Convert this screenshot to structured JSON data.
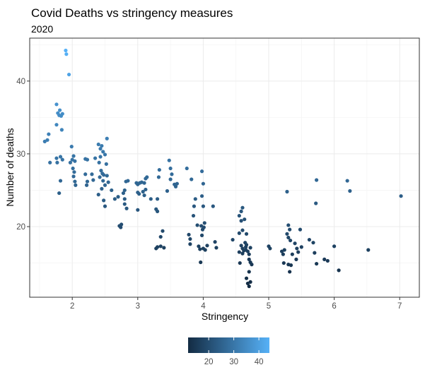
{
  "chart_data": {
    "type": "scatter",
    "title": "Covid Deaths vs  stringency measures",
    "subtitle": "2020",
    "xlabel": "Stringency",
    "ylabel": "Number of deaths",
    "xlim": [
      1.35,
      7.3
    ],
    "ylim": [
      10.3,
      45.9
    ],
    "x_ticks": [
      2,
      3,
      4,
      5,
      6,
      7
    ],
    "y_ticks": [
      20,
      30,
      40
    ],
    "grid": true,
    "color_by": "y",
    "colorbar": {
      "ticks": [
        20,
        30,
        40
      ],
      "range": [
        11.8,
        44.2
      ],
      "low_color": "#132B43",
      "high_color": "#56B1F7",
      "placement": "bottom"
    },
    "points": [
      {
        "x": 1.58,
        "y": 31.7
      },
      {
        "x": 1.62,
        "y": 31.9
      },
      {
        "x": 1.64,
        "y": 32.7
      },
      {
        "x": 1.66,
        "y": 28.8
      },
      {
        "x": 1.76,
        "y": 36.8
      },
      {
        "x": 1.78,
        "y": 35.6
      },
      {
        "x": 1.8,
        "y": 35.3
      },
      {
        "x": 1.81,
        "y": 36.0
      },
      {
        "x": 1.83,
        "y": 35.2
      },
      {
        "x": 1.85,
        "y": 35.5
      },
      {
        "x": 1.76,
        "y": 34.0
      },
      {
        "x": 1.84,
        "y": 33.3
      },
      {
        "x": 1.76,
        "y": 29.4
      },
      {
        "x": 1.77,
        "y": 28.8
      },
      {
        "x": 1.82,
        "y": 29.6
      },
      {
        "x": 1.85,
        "y": 29.2
      },
      {
        "x": 1.82,
        "y": 26.3
      },
      {
        "x": 1.8,
        "y": 24.6
      },
      {
        "x": 1.9,
        "y": 44.2
      },
      {
        "x": 1.91,
        "y": 43.7
      },
      {
        "x": 1.95,
        "y": 40.9
      },
      {
        "x": 1.99,
        "y": 31.0
      },
      {
        "x": 2.0,
        "y": 29.2
      },
      {
        "x": 2.02,
        "y": 29.7
      },
      {
        "x": 2.04,
        "y": 29.0
      },
      {
        "x": 2.01,
        "y": 28.0
      },
      {
        "x": 2.03,
        "y": 27.5
      },
      {
        "x": 2.02,
        "y": 26.9
      },
      {
        "x": 2.04,
        "y": 26.2
      },
      {
        "x": 2.05,
        "y": 25.7
      },
      {
        "x": 1.97,
        "y": 28.8
      },
      {
        "x": 2.2,
        "y": 29.3
      },
      {
        "x": 2.23,
        "y": 29.2
      },
      {
        "x": 2.2,
        "y": 27.2
      },
      {
        "x": 2.23,
        "y": 26.2
      },
      {
        "x": 2.22,
        "y": 25.7
      },
      {
        "x": 2.3,
        "y": 27.2
      },
      {
        "x": 2.32,
        "y": 26.4
      },
      {
        "x": 2.35,
        "y": 29.4
      },
      {
        "x": 2.4,
        "y": 31.3
      },
      {
        "x": 2.43,
        "y": 30.7
      },
      {
        "x": 2.45,
        "y": 31.1
      },
      {
        "x": 2.47,
        "y": 30.3
      },
      {
        "x": 2.43,
        "y": 29.6
      },
      {
        "x": 2.5,
        "y": 29.9
      },
      {
        "x": 2.53,
        "y": 32.1
      },
      {
        "x": 2.41,
        "y": 28.8
      },
      {
        "x": 2.44,
        "y": 27.7
      },
      {
        "x": 2.46,
        "y": 27.3
      },
      {
        "x": 2.48,
        "y": 27.1
      },
      {
        "x": 2.42,
        "y": 26.8
      },
      {
        "x": 2.47,
        "y": 26.3
      },
      {
        "x": 2.52,
        "y": 28.6
      },
      {
        "x": 2.53,
        "y": 27.0
      },
      {
        "x": 2.55,
        "y": 26.1
      },
      {
        "x": 2.5,
        "y": 25.7
      },
      {
        "x": 2.45,
        "y": 25.2
      },
      {
        "x": 2.4,
        "y": 24.4
      },
      {
        "x": 2.48,
        "y": 23.6
      },
      {
        "x": 2.5,
        "y": 22.8
      },
      {
        "x": 2.6,
        "y": 25.0
      },
      {
        "x": 2.65,
        "y": 23.8
      },
      {
        "x": 2.7,
        "y": 24.1
      },
      {
        "x": 2.72,
        "y": 20.1
      },
      {
        "x": 2.74,
        "y": 19.9
      },
      {
        "x": 2.75,
        "y": 20.3
      },
      {
        "x": 2.78,
        "y": 24.6
      },
      {
        "x": 2.8,
        "y": 23.8
      },
      {
        "x": 2.82,
        "y": 26.2
      },
      {
        "x": 2.85,
        "y": 26.3
      },
      {
        "x": 2.8,
        "y": 23.1
      },
      {
        "x": 2.83,
        "y": 22.5
      },
      {
        "x": 2.8,
        "y": 25.0
      },
      {
        "x": 2.98,
        "y": 26.0
      },
      {
        "x": 3.0,
        "y": 25.8
      },
      {
        "x": 3.03,
        "y": 26.0
      },
      {
        "x": 3.06,
        "y": 26.1
      },
      {
        "x": 3.1,
        "y": 26.0
      },
      {
        "x": 3.12,
        "y": 26.6
      },
      {
        "x": 3.14,
        "y": 26.8
      },
      {
        "x": 3.0,
        "y": 24.7
      },
      {
        "x": 3.02,
        "y": 24.5
      },
      {
        "x": 3.08,
        "y": 24.8
      },
      {
        "x": 3.1,
        "y": 24.3
      },
      {
        "x": 3.12,
        "y": 25.1
      },
      {
        "x": 3.0,
        "y": 22.3
      },
      {
        "x": 3.2,
        "y": 23.8
      },
      {
        "x": 3.28,
        "y": 22.4
      },
      {
        "x": 3.3,
        "y": 22.1
      },
      {
        "x": 3.3,
        "y": 23.8
      },
      {
        "x": 3.32,
        "y": 26.8
      },
      {
        "x": 3.33,
        "y": 27.8
      },
      {
        "x": 3.35,
        "y": 18.6
      },
      {
        "x": 3.38,
        "y": 19.4
      },
      {
        "x": 3.28,
        "y": 17.0
      },
      {
        "x": 3.3,
        "y": 17.2
      },
      {
        "x": 3.35,
        "y": 17.3
      },
      {
        "x": 3.4,
        "y": 17.1
      },
      {
        "x": 3.45,
        "y": 24.9
      },
      {
        "x": 3.48,
        "y": 29.1
      },
      {
        "x": 3.5,
        "y": 28.0
      },
      {
        "x": 3.52,
        "y": 27.2
      },
      {
        "x": 3.5,
        "y": 26.5
      },
      {
        "x": 3.56,
        "y": 25.8
      },
      {
        "x": 3.58,
        "y": 25.5
      },
      {
        "x": 3.6,
        "y": 25.9
      },
      {
        "x": 3.75,
        "y": 28.0
      },
      {
        "x": 3.78,
        "y": 18.9
      },
      {
        "x": 3.8,
        "y": 18.3
      },
      {
        "x": 3.82,
        "y": 26.5
      },
      {
        "x": 3.86,
        "y": 22.8
      },
      {
        "x": 3.88,
        "y": 23.8
      },
      {
        "x": 3.85,
        "y": 21.5
      },
      {
        "x": 3.8,
        "y": 17.6
      },
      {
        "x": 3.91,
        "y": 20.2
      },
      {
        "x": 3.93,
        "y": 17.3
      },
      {
        "x": 3.95,
        "y": 16.9
      },
      {
        "x": 3.96,
        "y": 15.1
      },
      {
        "x": 3.98,
        "y": 27.6
      },
      {
        "x": 4.0,
        "y": 25.9
      },
      {
        "x": 3.98,
        "y": 24.2
      },
      {
        "x": 4.0,
        "y": 22.8
      },
      {
        "x": 3.97,
        "y": 20.1
      },
      {
        "x": 3.99,
        "y": 19.6
      },
      {
        "x": 4.01,
        "y": 19.9
      },
      {
        "x": 4.02,
        "y": 20.5
      },
      {
        "x": 3.98,
        "y": 18.8
      },
      {
        "x": 4.0,
        "y": 17.0
      },
      {
        "x": 4.03,
        "y": 16.8
      },
      {
        "x": 4.06,
        "y": 17.4
      },
      {
        "x": 4.15,
        "y": 22.8
      },
      {
        "x": 4.18,
        "y": 17.9
      },
      {
        "x": 4.2,
        "y": 17.1
      },
      {
        "x": 4.45,
        "y": 18.2
      },
      {
        "x": 4.55,
        "y": 21.5
      },
      {
        "x": 4.58,
        "y": 22.1
      },
      {
        "x": 4.6,
        "y": 22.6
      },
      {
        "x": 4.63,
        "y": 21.0
      },
      {
        "x": 4.58,
        "y": 20.8
      },
      {
        "x": 4.6,
        "y": 19.5
      },
      {
        "x": 4.55,
        "y": 19.1
      },
      {
        "x": 4.58,
        "y": 17.4
      },
      {
        "x": 4.6,
        "y": 17.0
      },
      {
        "x": 4.62,
        "y": 16.7
      },
      {
        "x": 4.65,
        "y": 17.2
      },
      {
        "x": 4.55,
        "y": 16.5
      },
      {
        "x": 4.6,
        "y": 16.3
      },
      {
        "x": 4.65,
        "y": 16.8
      },
      {
        "x": 4.68,
        "y": 16.6
      },
      {
        "x": 4.7,
        "y": 16.2
      },
      {
        "x": 4.72,
        "y": 17.1
      },
      {
        "x": 4.66,
        "y": 17.5
      },
      {
        "x": 4.7,
        "y": 15.5
      },
      {
        "x": 4.72,
        "y": 15.1
      },
      {
        "x": 4.74,
        "y": 14.8
      },
      {
        "x": 4.7,
        "y": 13.8
      },
      {
        "x": 4.66,
        "y": 12.9
      },
      {
        "x": 4.68,
        "y": 12.2
      },
      {
        "x": 4.7,
        "y": 11.8
      },
      {
        "x": 4.72,
        "y": 12.4
      },
      {
        "x": 4.56,
        "y": 15.0
      },
      {
        "x": 4.66,
        "y": 19.0
      },
      {
        "x": 4.64,
        "y": 17.8
      },
      {
        "x": 5.0,
        "y": 17.3
      },
      {
        "x": 5.02,
        "y": 17.0
      },
      {
        "x": 5.2,
        "y": 16.6
      },
      {
        "x": 5.22,
        "y": 16.2
      },
      {
        "x": 5.24,
        "y": 16.8
      },
      {
        "x": 5.23,
        "y": 15.0
      },
      {
        "x": 5.28,
        "y": 24.8
      },
      {
        "x": 5.3,
        "y": 20.2
      },
      {
        "x": 5.32,
        "y": 19.6
      },
      {
        "x": 5.28,
        "y": 19.0
      },
      {
        "x": 5.3,
        "y": 18.5
      },
      {
        "x": 5.33,
        "y": 18.1
      },
      {
        "x": 5.3,
        "y": 14.8
      },
      {
        "x": 5.34,
        "y": 14.7
      },
      {
        "x": 5.36,
        "y": 16.2
      },
      {
        "x": 5.32,
        "y": 13.8
      },
      {
        "x": 5.4,
        "y": 17.7
      },
      {
        "x": 5.43,
        "y": 17.0
      },
      {
        "x": 5.45,
        "y": 16.5
      },
      {
        "x": 5.42,
        "y": 15.5
      },
      {
        "x": 5.48,
        "y": 19.6
      },
      {
        "x": 5.5,
        "y": 17.2
      },
      {
        "x": 5.62,
        "y": 18.2
      },
      {
        "x": 5.68,
        "y": 17.8
      },
      {
        "x": 5.7,
        "y": 16.4
      },
      {
        "x": 5.72,
        "y": 23.2
      },
      {
        "x": 5.73,
        "y": 26.4
      },
      {
        "x": 5.73,
        "y": 14.9
      },
      {
        "x": 5.85,
        "y": 15.5
      },
      {
        "x": 5.9,
        "y": 15.3
      },
      {
        "x": 6.0,
        "y": 17.3
      },
      {
        "x": 6.07,
        "y": 14.0
      },
      {
        "x": 6.2,
        "y": 26.3
      },
      {
        "x": 6.24,
        "y": 24.9
      },
      {
        "x": 6.52,
        "y": 16.8
      },
      {
        "x": 7.02,
        "y": 24.2
      }
    ]
  }
}
